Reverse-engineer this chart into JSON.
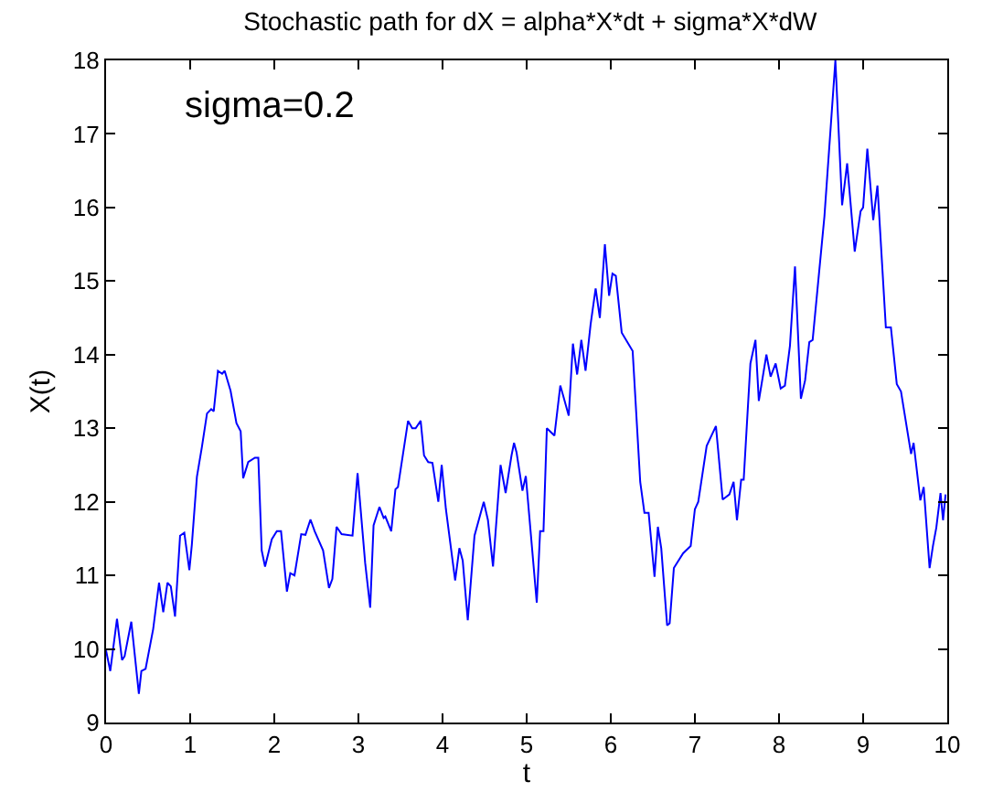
{
  "chart_data": {
    "type": "line",
    "title": "Stochastic path for dX = alpha*X*dt + sigma*X*dW",
    "xlabel": "t",
    "ylabel": "X(t)",
    "annotations": [
      "sigma=0.2"
    ],
    "xlim": [
      0,
      10
    ],
    "ylim": [
      9,
      18
    ],
    "xticks": [
      0,
      1,
      2,
      3,
      4,
      5,
      6,
      7,
      8,
      9,
      10
    ],
    "yticks": [
      9,
      10,
      11,
      12,
      13,
      14,
      15,
      16,
      17,
      18
    ],
    "marker": "none",
    "line_style": "solid",
    "series": [
      {
        "color": "#0000ff",
        "x": [
          0,
          0.05,
          0.13,
          0.19,
          0.22,
          0.3,
          0.39,
          0.42,
          0.47,
          0.56,
          0.63,
          0.68,
          0.73,
          0.77,
          0.82,
          0.88,
          0.93,
          0.99,
          1.02,
          1.08,
          1.14,
          1.2,
          1.25,
          1.28,
          1.33,
          1.38,
          1.41,
          1.48,
          1.55,
          1.6,
          1.63,
          1.69,
          1.77,
          1.81,
          1.85,
          1.89,
          1.97,
          2.03,
          2.08,
          2.15,
          2.19,
          2.24,
          2.32,
          2.37,
          2.43,
          2.48,
          2.58,
          2.65,
          2.69,
          2.74,
          2.8,
          2.93,
          2.99,
          3.08,
          3.14,
          3.18,
          3.25,
          3.3,
          3.32,
          3.39,
          3.44,
          3.47,
          3.59,
          3.64,
          3.68,
          3.74,
          3.78,
          3.83,
          3.88,
          3.95,
          3.99,
          4.04,
          4.15,
          4.2,
          4.24,
          4.3,
          4.38,
          4.49,
          4.54,
          4.6,
          4.69,
          4.75,
          4.82,
          4.85,
          4.88,
          4.95,
          4.99,
          5.12,
          5.16,
          5.2,
          5.24,
          5.33,
          5.4,
          5.43,
          5.5,
          5.55,
          5.6,
          5.65,
          5.7,
          5.76,
          5.82,
          5.87,
          5.93,
          5.98,
          6.02,
          6.06,
          6.13,
          6.26,
          6.35,
          6.4,
          6.45,
          6.52,
          6.56,
          6.6,
          6.67,
          6.7,
          6.75,
          6.86,
          6.95,
          7.0,
          7.04,
          7.14,
          7.25,
          7.33,
          7.41,
          7.46,
          7.5,
          7.55,
          7.58,
          7.66,
          7.72,
          7.76,
          7.85,
          7.9,
          7.96,
          8.02,
          8.07,
          8.13,
          8.19,
          8.26,
          8.31,
          8.36,
          8.4,
          8.54,
          8.67,
          8.75,
          8.81,
          8.9,
          8.97,
          9.0,
          9.05,
          9.12,
          9.17,
          9.27,
          9.33,
          9.4,
          9.45,
          9.57,
          9.6,
          9.68,
          9.72,
          9.79,
          9.83,
          9.87,
          9.92,
          9.95,
          9.98
        ],
        "values": [
          9.98,
          9.7,
          10.41,
          9.85,
          9.9,
          10.37,
          9.39,
          9.7,
          9.73,
          10.27,
          10.9,
          10.5,
          10.9,
          10.85,
          10.44,
          11.54,
          11.58,
          11.07,
          11.42,
          12.34,
          12.75,
          13.2,
          13.26,
          13.23,
          13.78,
          13.74,
          13.78,
          13.51,
          13.07,
          12.96,
          12.32,
          12.54,
          12.6,
          12.6,
          11.34,
          11.12,
          11.49,
          11.6,
          11.6,
          10.78,
          11.03,
          11.0,
          11.56,
          11.55,
          11.76,
          11.6,
          11.34,
          10.83,
          10.95,
          11.66,
          11.56,
          11.54,
          12.39,
          11.17,
          10.56,
          11.68,
          11.93,
          11.78,
          11.8,
          11.6,
          12.17,
          12.2,
          13.1,
          13.0,
          13.0,
          13.1,
          12.63,
          12.54,
          12.53,
          12.0,
          12.5,
          11.9,
          10.93,
          11.37,
          11.2,
          10.39,
          11.54,
          12.0,
          11.75,
          11.12,
          12.5,
          12.12,
          12.63,
          12.8,
          12.67,
          12.15,
          12.35,
          10.63,
          11.6,
          11.6,
          13.0,
          12.9,
          13.58,
          13.46,
          13.17,
          14.15,
          13.73,
          14.2,
          13.78,
          14.41,
          14.9,
          14.5,
          15.5,
          14.8,
          15.1,
          15.07,
          14.3,
          14.05,
          12.27,
          11.85,
          11.85,
          10.98,
          11.66,
          11.37,
          10.32,
          10.35,
          11.1,
          11.3,
          11.4,
          11.9,
          12.0,
          12.76,
          13.03,
          12.03,
          12.1,
          12.27,
          11.75,
          12.3,
          12.3,
          13.88,
          14.2,
          13.37,
          14.0,
          13.7,
          13.88,
          13.54,
          13.58,
          14.12,
          15.2,
          13.4,
          13.65,
          14.17,
          14.2,
          15.88,
          18.0,
          16.03,
          16.6,
          15.4,
          15.95,
          16.0,
          16.8,
          15.83,
          16.3,
          14.37,
          14.37,
          13.6,
          13.5,
          12.65,
          12.8,
          12.02,
          12.2,
          11.1,
          11.4,
          11.65,
          12.12,
          11.75,
          12.1
        ]
      }
    ]
  }
}
